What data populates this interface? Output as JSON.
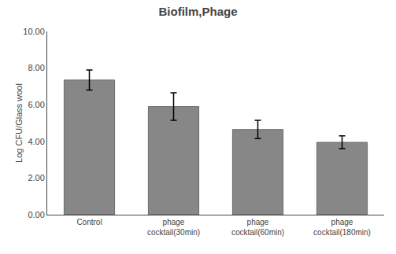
{
  "chart_data": {
    "type": "bar",
    "title": "Biofilm,Phage",
    "categories": [
      "Control",
      "phage",
      "phage",
      "phage"
    ],
    "sublabels": [
      null,
      "cocktail(30min)",
      "cocktail(60min)",
      "cocktail(180min)"
    ],
    "values": [
      7.35,
      5.9,
      4.65,
      3.95
    ],
    "errors": [
      0.55,
      0.75,
      0.5,
      0.35
    ],
    "color": "#878787",
    "ylabel": "Log CFU/Glass wool",
    "ylim": [
      0,
      10.0
    ],
    "yticks": [
      {
        "value": 0.0,
        "label": "0.00"
      },
      {
        "value": 2.0,
        "label": "2.00"
      },
      {
        "value": 4.0,
        "label": "4.00"
      },
      {
        "value": 6.0,
        "label": "6.00"
      },
      {
        "value": 8.0,
        "label": "8.00"
      },
      {
        "value": 10.0,
        "label": "10.00"
      }
    ],
    "grid": false
  }
}
